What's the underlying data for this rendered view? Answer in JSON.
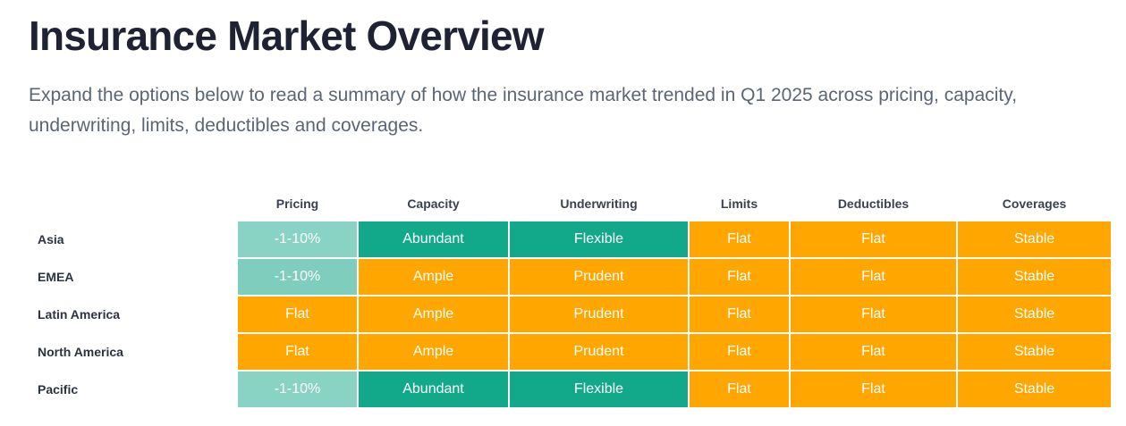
{
  "title": "Insurance Market Overview",
  "intro": "Expand the options below to read a summary of how the insurance market trended in Q1 2025 across pricing, capacity, underwriting, limits, deductibles and coverages.",
  "columns": [
    "Pricing",
    "Capacity",
    "Underwriting",
    "Limits",
    "Deductibles",
    "Coverages"
  ],
  "colors": {
    "light_teal": "#88d3c3",
    "light_teal_alt": "#7ecdbd",
    "teal": "#12a98a",
    "orange": "#ffa600"
  },
  "rows": [
    {
      "region": "Asia",
      "cells": [
        {
          "value": "-1-10%",
          "color": "#88d3c3"
        },
        {
          "value": "Abundant",
          "color": "#12a98a"
        },
        {
          "value": "Flexible",
          "color": "#12a98a"
        },
        {
          "value": "Flat",
          "color": "#ffa600"
        },
        {
          "value": "Flat",
          "color": "#ffa600"
        },
        {
          "value": "Stable",
          "color": "#ffa600"
        }
      ]
    },
    {
      "region": "EMEA",
      "cells": [
        {
          "value": "-1-10%",
          "color": "#7ecdbd"
        },
        {
          "value": "Ample",
          "color": "#ffa600"
        },
        {
          "value": "Prudent",
          "color": "#ffa600"
        },
        {
          "value": "Flat",
          "color": "#ffa600"
        },
        {
          "value": "Flat",
          "color": "#ffa600"
        },
        {
          "value": "Stable",
          "color": "#ffa600"
        }
      ]
    },
    {
      "region": "Latin America",
      "cells": [
        {
          "value": "Flat",
          "color": "#ffa600"
        },
        {
          "value": "Ample",
          "color": "#ffa600"
        },
        {
          "value": "Prudent",
          "color": "#ffa600"
        },
        {
          "value": "Flat",
          "color": "#ffa600"
        },
        {
          "value": "Flat",
          "color": "#ffa600"
        },
        {
          "value": "Stable",
          "color": "#ffa600"
        }
      ]
    },
    {
      "region": "North America",
      "cells": [
        {
          "value": "Flat",
          "color": "#ffa600"
        },
        {
          "value": "Ample",
          "color": "#ffa600"
        },
        {
          "value": "Prudent",
          "color": "#ffa600"
        },
        {
          "value": "Flat",
          "color": "#ffa600"
        },
        {
          "value": "Flat",
          "color": "#ffa600"
        },
        {
          "value": "Stable",
          "color": "#ffa600"
        }
      ]
    },
    {
      "region": "Pacific",
      "cells": [
        {
          "value": "-1-10%",
          "color": "#88d3c3"
        },
        {
          "value": "Abundant",
          "color": "#12a98a"
        },
        {
          "value": "Flexible",
          "color": "#12a98a"
        },
        {
          "value": "Flat",
          "color": "#ffa600"
        },
        {
          "value": "Flat",
          "color": "#ffa600"
        },
        {
          "value": "Stable",
          "color": "#ffa600"
        }
      ]
    }
  ]
}
